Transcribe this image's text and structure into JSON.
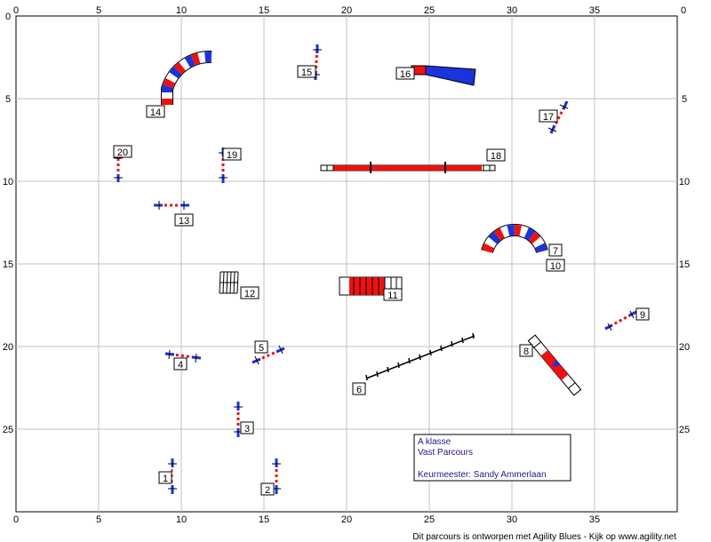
{
  "axis": {
    "x_ticks": [
      "0",
      "5",
      "10",
      "15",
      "20",
      "25",
      "30",
      "35"
    ],
    "y_ticks": [
      "0",
      "5",
      "10",
      "15",
      "20",
      "25"
    ]
  },
  "obstacles": [
    {
      "num": "1",
      "type": "jump"
    },
    {
      "num": "2",
      "type": "jump"
    },
    {
      "num": "3",
      "type": "jump"
    },
    {
      "num": "4",
      "type": "jump"
    },
    {
      "num": "5",
      "type": "jump"
    },
    {
      "num": "6",
      "type": "weave-poles"
    },
    {
      "num": "7",
      "type": "tunnel"
    },
    {
      "num": "8",
      "type": "seesaw"
    },
    {
      "num": "9",
      "type": "jump"
    },
    {
      "num": "10",
      "type": "tunnel"
    },
    {
      "num": "11",
      "type": "chute"
    },
    {
      "num": "12",
      "type": "tire"
    },
    {
      "num": "13",
      "type": "jump"
    },
    {
      "num": "14",
      "type": "tunnel"
    },
    {
      "num": "15",
      "type": "jump"
    },
    {
      "num": "16",
      "type": "chute"
    },
    {
      "num": "17",
      "type": "jump"
    },
    {
      "num": "18",
      "type": "dogwalk"
    },
    {
      "num": "19",
      "type": "jump"
    },
    {
      "num": "20",
      "type": "jump"
    }
  ],
  "info_box": {
    "line1": "A klasse",
    "line2": "Vast Parcours",
    "line3": "Keurmeester: Sandy Ammerlaan"
  },
  "footer": "Dit parcours is ontworpen met Agility Blues - Kijk op www.agility.net",
  "colors": {
    "red": "#ee1111",
    "blue": "#1a33dd",
    "grid": "#c0c0c0"
  }
}
